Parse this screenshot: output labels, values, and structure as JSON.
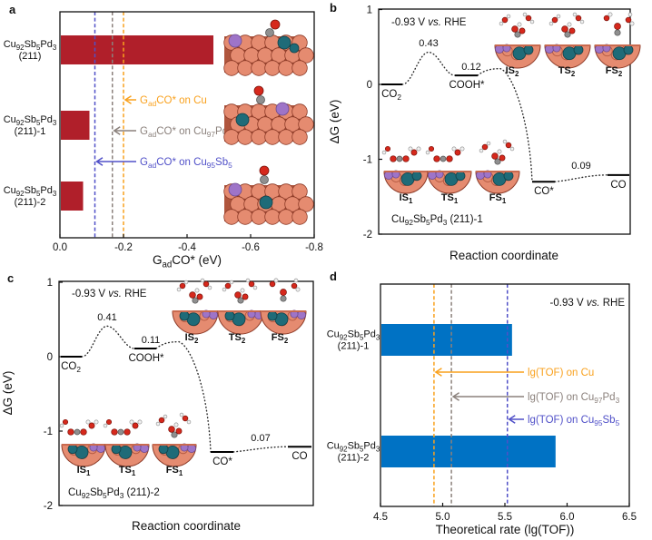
{
  "colors": {
    "bar_red": "#b01f2a",
    "bar_blue": "#0072c4",
    "accent_orange": "#f9a11d",
    "accent_gray": "#8b817c",
    "accent_purple": "#5050c8",
    "atom_Cu": "#e58b70",
    "atom_Sb": "#9e74c8",
    "atom_Pd": "#1f6b78",
    "atom_O": "#d6281c",
    "atom_C": "#8f8f8f",
    "atom_H": "#f2f2f2"
  },
  "chart_data": [
    {
      "letter": "a",
      "type": "bar",
      "orientation": "horizontal",
      "xlabel": "G_{ad}CO* (eV)",
      "xlim": [
        0,
        -0.8
      ],
      "xticks": [
        "0.0",
        "-0.2",
        "-0.4",
        "-0.6",
        "-0.8"
      ],
      "bar_color": "#b01f2a",
      "categories": [
        [
          "Cu_{92}Sb_{5}Pd_{3}",
          "(211)"
        ],
        [
          "Cu_{92}Sb_{5}Pd_{3}",
          "(211)-1"
        ],
        [
          "Cu_{92}Sb_{5}Pd_{3}",
          "(211)-2"
        ]
      ],
      "values": [
        -0.48,
        -0.09,
        -0.07
      ],
      "reference_lines": [
        {
          "label": "G_{ad}CO* on Cu",
          "value": -0.2,
          "color": "#f9a11d"
        },
        {
          "label": "G_{ad}CO* on Cu_{97}Pd_{3}",
          "value": -0.165,
          "color": "#8b817c"
        },
        {
          "label": "G_{ad}CO* on Cu_{95}Sb_{5}",
          "value": -0.11,
          "color": "#5050c8"
        }
      ]
    },
    {
      "letter": "b",
      "type": "line",
      "subtype": "free-energy-diagram",
      "condition": "-0.93 V ~vs.~ RHE",
      "system": "Cu_{92}Sb_{5}Pd_{3} (211)-1",
      "ylabel": "ΔG (eV)",
      "xlabel": "Reaction coordinate",
      "ylim": [
        -2,
        1
      ],
      "yticks": [
        "1",
        "0",
        "-1",
        "-2"
      ],
      "states": [
        {
          "label": "CO_{2}",
          "energy": 0.0,
          "kind": "level"
        },
        {
          "label": "",
          "energy": 0.43,
          "kind": "barrier",
          "value_label": "0.43"
        },
        {
          "label": "COOH*",
          "energy": 0.12,
          "kind": "level",
          "value_label": "0.12"
        },
        {
          "label": "",
          "energy": 0.21,
          "kind": "barrier",
          "value_label": ""
        },
        {
          "label": "CO*",
          "energy": -1.3,
          "kind": "level"
        },
        {
          "label": "CO",
          "energy": -1.21,
          "kind": "level",
          "step_label": "0.09"
        }
      ],
      "inset_labels": [
        "IS_{1}",
        "TS_{1}",
        "FS_{1}",
        "IS_{2}",
        "TS_{2}",
        "FS_{2}"
      ]
    },
    {
      "letter": "c",
      "type": "line",
      "subtype": "free-energy-diagram",
      "condition": "-0.93 V ~vs.~ RHE",
      "system": "Cu_{92}Sb_{5}Pd_{3} (211)-2",
      "ylabel": "ΔG (eV)",
      "xlabel": "Reaction coordinate",
      "ylim": [
        -2,
        1
      ],
      "yticks": [
        "1",
        "0",
        "-1",
        "-2"
      ],
      "states": [
        {
          "label": "CO_{2}",
          "energy": 0.0,
          "kind": "level"
        },
        {
          "label": "",
          "energy": 0.41,
          "kind": "barrier",
          "value_label": "0.41"
        },
        {
          "label": "COOH*",
          "energy": 0.11,
          "kind": "level",
          "value_label": "0.11"
        },
        {
          "label": "",
          "energy": 0.2,
          "kind": "barrier",
          "value_label": ""
        },
        {
          "label": "CO*",
          "energy": -1.28,
          "kind": "level"
        },
        {
          "label": "CO",
          "energy": -1.21,
          "kind": "level",
          "step_label": "0.07"
        }
      ],
      "inset_labels": [
        "IS_{1}",
        "TS_{1}",
        "FS_{1}",
        "IS_{2}",
        "TS_{2}",
        "FS_{2}"
      ]
    },
    {
      "letter": "d",
      "type": "bar",
      "orientation": "horizontal",
      "condition": "-0.93 V ~vs.~ RHE",
      "xlabel": "Theoretical rate (lg(TOF))",
      "xlim": [
        4.5,
        6.5
      ],
      "xticks": [
        "4.5",
        "5.0",
        "5.5",
        "6.0",
        "6.5"
      ],
      "bar_color": "#0072c4",
      "categories": [
        [
          "Cu_{92}Sb_{5}Pd_{3}",
          "(211)-1"
        ],
        [
          "Cu_{92}Sb_{5}Pd_{3}",
          "(211)-2"
        ]
      ],
      "values": [
        5.55,
        5.9
      ],
      "reference_lines": [
        {
          "label": "lg(TOF) on Cu",
          "value": 4.93,
          "color": "#f9a11d"
        },
        {
          "label": "lg(TOF) on Cu_{97}Pd_{3}",
          "value": 5.07,
          "color": "#8b817c"
        },
        {
          "label": "lg(TOF) on Cu_{95}Sb_{5}",
          "value": 5.52,
          "color": "#5050c8"
        }
      ]
    }
  ]
}
